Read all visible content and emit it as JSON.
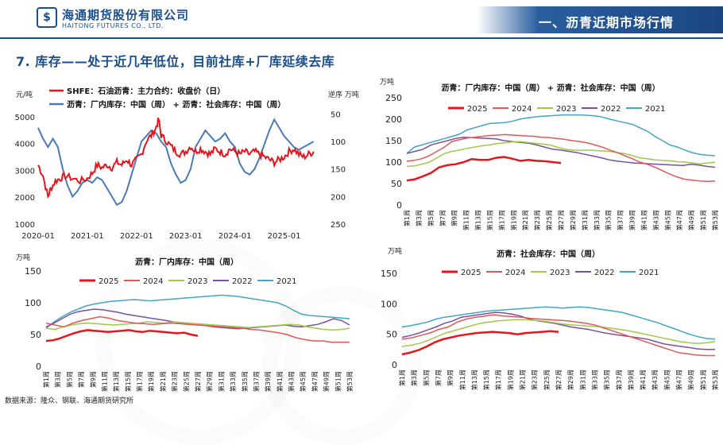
{
  "header": {
    "logo_icon": "$",
    "company_cn": "海通期货股份有限公司",
    "company_en": "HAITONG FUTURES CO., LTD.",
    "section_banner": "一、沥青近期市场行情"
  },
  "section_title": "7. 库存——处于近几年低位，目前社库+厂库延续去库",
  "source": "数据来源：隆众、钢联、海通期货研究所",
  "colors": {
    "c2025": "#e8141b",
    "c2024": "#e05858",
    "c2023": "#9ec94a",
    "c2022": "#7b4f9e",
    "c2021": "#43a5c2",
    "price": "#e8141b",
    "inv": "#4a7ab8"
  },
  "week_labels": [
    "第1周",
    "第3周",
    "第5周",
    "第7周",
    "第9周",
    "第11周",
    "第13周",
    "第15周",
    "第17周",
    "第19周",
    "第21周",
    "第23周",
    "第25周",
    "第27周",
    "第29周",
    "第31周",
    "第33周",
    "第35周",
    "第37周",
    "第39周",
    "第41周",
    "第43周",
    "第45周",
    "第47周",
    "第49周",
    "第51周",
    "第53周"
  ],
  "chart_data": [
    {
      "type": "line",
      "title": "",
      "legend": [
        "SHFE：石油沥青：主力合约：收盘价（日）",
        "沥青：厂内库存：中国（周） + 沥青：社会库存：中国（周）"
      ],
      "y_left_label": "元/吨",
      "y_right_label": "逆序 万吨",
      "y_left_ticks": [
        "5000",
        "4000",
        "3000",
        "2000",
        "1000"
      ],
      "y_right_ticks": [
        "50",
        "100",
        "150",
        "200",
        "250"
      ],
      "x_ticks": [
        "2020-01",
        "2021-01",
        "2022-01",
        "2023-01",
        "2024-01",
        "2025-01"
      ],
      "ylim_left": [
        1000,
        5200
      ],
      "ylim_right": [
        250,
        45
      ],
      "price_series": {
        "name": "SHFE：石油沥青：主力合约：收盘价（日）",
        "points": [
          [
            2020.0,
            3200
          ],
          [
            2020.1,
            2800
          ],
          [
            2020.2,
            2000
          ],
          [
            2020.25,
            2300
          ],
          [
            2020.35,
            2600
          ],
          [
            2020.45,
            2700
          ],
          [
            2020.55,
            2800
          ],
          [
            2020.7,
            2700
          ],
          [
            2020.85,
            2600
          ],
          [
            2021.0,
            2700
          ],
          [
            2021.1,
            2900
          ],
          [
            2021.2,
            3200
          ],
          [
            2021.3,
            3100
          ],
          [
            2021.4,
            3200
          ],
          [
            2021.5,
            3100
          ],
          [
            2021.6,
            3300
          ],
          [
            2021.7,
            3200
          ],
          [
            2021.8,
            3400
          ],
          [
            2021.9,
            3200
          ],
          [
            2022.0,
            3400
          ],
          [
            2022.1,
            3600
          ],
          [
            2022.2,
            4100
          ],
          [
            2022.3,
            4300
          ],
          [
            2022.4,
            4600
          ],
          [
            2022.45,
            4900
          ],
          [
            2022.5,
            4300
          ],
          [
            2022.6,
            4100
          ],
          [
            2022.7,
            3900
          ],
          [
            2022.8,
            3700
          ],
          [
            2022.9,
            3600
          ],
          [
            2023.0,
            3700
          ],
          [
            2023.1,
            3900
          ],
          [
            2023.2,
            3700
          ],
          [
            2023.3,
            3800
          ],
          [
            2023.4,
            3700
          ],
          [
            2023.5,
            3600
          ],
          [
            2023.6,
            3800
          ],
          [
            2023.7,
            3700
          ],
          [
            2023.8,
            3600
          ],
          [
            2023.9,
            3800
          ],
          [
            2024.0,
            3700
          ],
          [
            2024.1,
            3600
          ],
          [
            2024.2,
            3700
          ],
          [
            2024.3,
            3600
          ],
          [
            2024.4,
            3700
          ],
          [
            2024.5,
            3600
          ],
          [
            2024.6,
            3500
          ],
          [
            2024.7,
            3400
          ],
          [
            2024.8,
            3300
          ],
          [
            2024.9,
            3400
          ],
          [
            2025.0,
            3500
          ],
          [
            2025.1,
            3700
          ],
          [
            2025.2,
            3800
          ],
          [
            2025.3,
            3600
          ],
          [
            2025.4,
            3500
          ],
          [
            2025.5,
            3600
          ],
          [
            2025.6,
            3700
          ]
        ]
      },
      "inventory_series": {
        "name": "沥青：厂内库存：中国（周） + 沥青：社会库存：中国（周）",
        "points": [
          [
            2020.0,
            75
          ],
          [
            2020.1,
            95
          ],
          [
            2020.2,
            110
          ],
          [
            2020.3,
            95
          ],
          [
            2020.4,
            110
          ],
          [
            2020.5,
            150
          ],
          [
            2020.6,
            180
          ],
          [
            2020.7,
            200
          ],
          [
            2020.8,
            190
          ],
          [
            2020.9,
            175
          ],
          [
            2021.0,
            170
          ],
          [
            2021.1,
            175
          ],
          [
            2021.2,
            165
          ],
          [
            2021.3,
            170
          ],
          [
            2021.4,
            185
          ],
          [
            2021.5,
            200
          ],
          [
            2021.6,
            215
          ],
          [
            2021.7,
            210
          ],
          [
            2021.8,
            190
          ],
          [
            2021.9,
            160
          ],
          [
            2022.0,
            130
          ],
          [
            2022.1,
            100
          ],
          [
            2022.2,
            90
          ],
          [
            2022.3,
            80
          ],
          [
            2022.4,
            85
          ],
          [
            2022.5,
            100
          ],
          [
            2022.6,
            110
          ],
          [
            2022.7,
            140
          ],
          [
            2022.8,
            160
          ],
          [
            2022.9,
            175
          ],
          [
            2023.0,
            170
          ],
          [
            2023.1,
            150
          ],
          [
            2023.2,
            110
          ],
          [
            2023.3,
            95
          ],
          [
            2023.4,
            80
          ],
          [
            2023.5,
            90
          ],
          [
            2023.6,
            100
          ],
          [
            2023.7,
            95
          ],
          [
            2023.8,
            85
          ],
          [
            2023.9,
            100
          ],
          [
            2024.0,
            110
          ],
          [
            2024.1,
            140
          ],
          [
            2024.2,
            155
          ],
          [
            2024.3,
            160
          ],
          [
            2024.4,
            150
          ],
          [
            2024.5,
            130
          ],
          [
            2024.6,
            105
          ],
          [
            2024.7,
            80
          ],
          [
            2024.8,
            60
          ],
          [
            2024.9,
            75
          ],
          [
            2025.0,
            90
          ],
          [
            2025.1,
            100
          ],
          [
            2025.2,
            110
          ],
          [
            2025.3,
            115
          ],
          [
            2025.4,
            110
          ],
          [
            2025.5,
            105
          ],
          [
            2025.6,
            100
          ]
        ]
      }
    },
    {
      "type": "line",
      "title": "沥青：厂内库存：中国（周） + 沥青：社会库存：中国（周）",
      "ylabel": "万吨",
      "ylim": [
        0,
        250
      ],
      "y_ticks": [
        "250",
        "200",
        "150",
        "100",
        "50",
        "0"
      ],
      "series": [
        {
          "name": "2025",
          "values": [
            57,
            60,
            67,
            75,
            88,
            93,
            95,
            100,
            107,
            105,
            105,
            110,
            112,
            108,
            103,
            105,
            103,
            102,
            100,
            98
          ]
        },
        {
          "name": "2024",
          "values": [
            102,
            104,
            108,
            115,
            125,
            135,
            148,
            152,
            156,
            158,
            160,
            162,
            163,
            164,
            163,
            162,
            161,
            160,
            158,
            157,
            155,
            153,
            150,
            148,
            145,
            140,
            135,
            128,
            122,
            115,
            108,
            100,
            95,
            88,
            80,
            72,
            65,
            60,
            58,
            56,
            55,
            56
          ]
        },
        {
          "name": "2023",
          "values": [
            90,
            91,
            95,
            100,
            110,
            120,
            125,
            128,
            132,
            135,
            138,
            140,
            143,
            145,
            147,
            148,
            146,
            144,
            142,
            140,
            135,
            130,
            128,
            127,
            128,
            127,
            126,
            125,
            122,
            120,
            115,
            110,
            108,
            105,
            104,
            103,
            101,
            100,
            98,
            96,
            98,
            100
          ]
        },
        {
          "name": "2022",
          "values": [
            120,
            125,
            130,
            140,
            145,
            150,
            155,
            158,
            157,
            156,
            155,
            154,
            150,
            148,
            146,
            144,
            140,
            135,
            130,
            128,
            125,
            122,
            118,
            114,
            110,
            105,
            102,
            100,
            98,
            97,
            96,
            95,
            94,
            93,
            92,
            95,
            93,
            90,
            88
          ]
        },
        {
          "name": "2021",
          "values": [
            120,
            135,
            140,
            145,
            150,
            155,
            160,
            165,
            175,
            180,
            185,
            190,
            191,
            192,
            195,
            200,
            203,
            205,
            207,
            208,
            209,
            210,
            210,
            210,
            209,
            208,
            205,
            200,
            196,
            192,
            188,
            180,
            172,
            160,
            150,
            140,
            135,
            128,
            122,
            118,
            116,
            115
          ]
        }
      ]
    },
    {
      "type": "line",
      "title": "沥青：厂内库存：中国（周）",
      "ylabel": "万吨",
      "ylim": [
        0,
        150
      ],
      "y_ticks": [
        "150",
        "100",
        "50",
        "0"
      ],
      "series": [
        {
          "name": "2025",
          "values": [
            40,
            41,
            44,
            48,
            52,
            55,
            57,
            56,
            55,
            54,
            55,
            56,
            57,
            55,
            54,
            56,
            55,
            54,
            53,
            52,
            53,
            50,
            48
          ]
        },
        {
          "name": "2024",
          "values": [
            68,
            65,
            62,
            68,
            72,
            75,
            78,
            76,
            72,
            70,
            68,
            67,
            66,
            67,
            68,
            67,
            66,
            65,
            64,
            63,
            62,
            61,
            60,
            58,
            57,
            55,
            53,
            50,
            45,
            42,
            40,
            40,
            38,
            38,
            38
          ]
        },
        {
          "name": "2023",
          "values": [
            60,
            58,
            62,
            65,
            67,
            68,
            67,
            66,
            65,
            66,
            67,
            68,
            70,
            69,
            68,
            70,
            69,
            68,
            67,
            66,
            65,
            64,
            63,
            62,
            61,
            62,
            63,
            64,
            65,
            66,
            65,
            62,
            60,
            58,
            57,
            58,
            60
          ]
        },
        {
          "name": "2022",
          "values": [
            62,
            68,
            75,
            82,
            86,
            88,
            90,
            89,
            87,
            85,
            82,
            80,
            78,
            76,
            74,
            72,
            70,
            68,
            66,
            65,
            64,
            62,
            61,
            60,
            59,
            60,
            61,
            62,
            63,
            64,
            65,
            63,
            62,
            64,
            66,
            70,
            75,
            72,
            65
          ]
        },
        {
          "name": "2021",
          "values": [
            60,
            70,
            78,
            85,
            90,
            95,
            98,
            100,
            102,
            103,
            104,
            105,
            104,
            103,
            104,
            105,
            106,
            107,
            108,
            109,
            110,
            111,
            112,
            111,
            110,
            108,
            106,
            104,
            102,
            100,
            95,
            88,
            82,
            80,
            79,
            78,
            77,
            76,
            75
          ]
        }
      ]
    },
    {
      "type": "line",
      "title": "沥青：社会库存：中国（周）",
      "ylabel": "万吨",
      "ylim": [
        0,
        150
      ],
      "y_ticks": [
        "150",
        "100",
        "50",
        "0"
      ],
      "series": [
        {
          "name": "2025",
          "values": [
            17,
            20,
            24,
            30,
            37,
            42,
            45,
            48,
            50,
            52,
            53,
            54,
            53,
            52,
            50,
            52,
            53,
            54,
            55,
            54
          ]
        },
        {
          "name": "2024",
          "values": [
            42,
            44,
            48,
            52,
            58,
            62,
            70,
            75,
            78,
            80,
            82,
            80,
            79,
            78,
            76,
            75,
            74,
            73,
            72,
            70,
            68,
            65,
            60,
            55,
            50,
            45,
            40,
            35,
            30,
            25,
            20,
            18,
            16,
            15,
            15
          ]
        },
        {
          "name": "2023",
          "values": [
            30,
            32,
            35,
            40,
            46,
            52,
            56,
            60,
            64,
            68,
            70,
            72,
            73,
            74,
            74,
            73,
            72,
            70,
            68,
            66,
            65,
            64,
            63,
            62,
            60,
            58,
            56,
            53,
            50,
            47,
            44,
            41,
            38,
            36,
            35,
            36,
            38
          ]
        },
        {
          "name": "2022",
          "values": [
            45,
            48,
            52,
            57,
            62,
            68,
            72,
            78,
            80,
            82,
            84,
            86,
            85,
            83,
            80,
            75,
            72,
            70,
            68,
            65,
            62,
            60,
            58,
            55,
            52,
            50,
            48,
            46,
            44,
            42,
            38,
            34,
            32,
            30,
            28,
            26,
            25,
            25
          ]
        },
        {
          "name": "2021",
          "values": [
            62,
            64,
            67,
            70,
            75,
            78,
            80,
            82,
            84,
            86,
            88,
            89,
            90,
            91,
            92,
            93,
            94,
            95,
            94,
            93,
            94,
            95,
            94,
            92,
            90,
            88,
            86,
            82,
            78,
            74,
            70,
            65,
            60,
            55,
            50,
            46,
            43,
            42
          ]
        }
      ]
    }
  ]
}
